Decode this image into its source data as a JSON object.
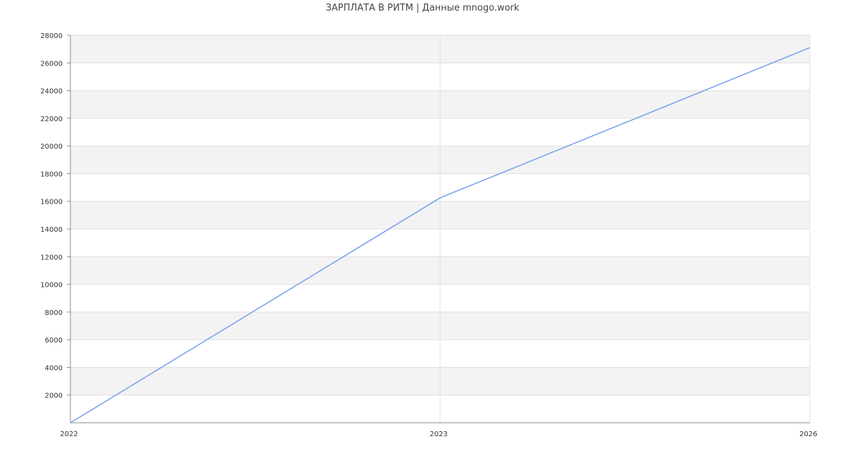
{
  "chart_data": {
    "type": "line",
    "title": "ЗАРПЛАТА В РИТМ | Данные mnogo.work",
    "categories": [
      "2022",
      "2023",
      "2026"
    ],
    "series": [
      {
        "values": [
          0,
          16250,
          27100
        ]
      }
    ],
    "ylim": [
      0,
      28000
    ],
    "yticks": [
      2000,
      4000,
      6000,
      8000,
      10000,
      12000,
      14000,
      16000,
      18000,
      20000,
      22000,
      24000,
      26000,
      28000
    ],
    "xlabel": "",
    "ylabel": "",
    "grid": true,
    "alternating_bands": true,
    "colors": {
      "line": "#779ef0",
      "band": "#f3f3f3",
      "grid": "#e0e0e0",
      "axis": "#888888"
    }
  }
}
